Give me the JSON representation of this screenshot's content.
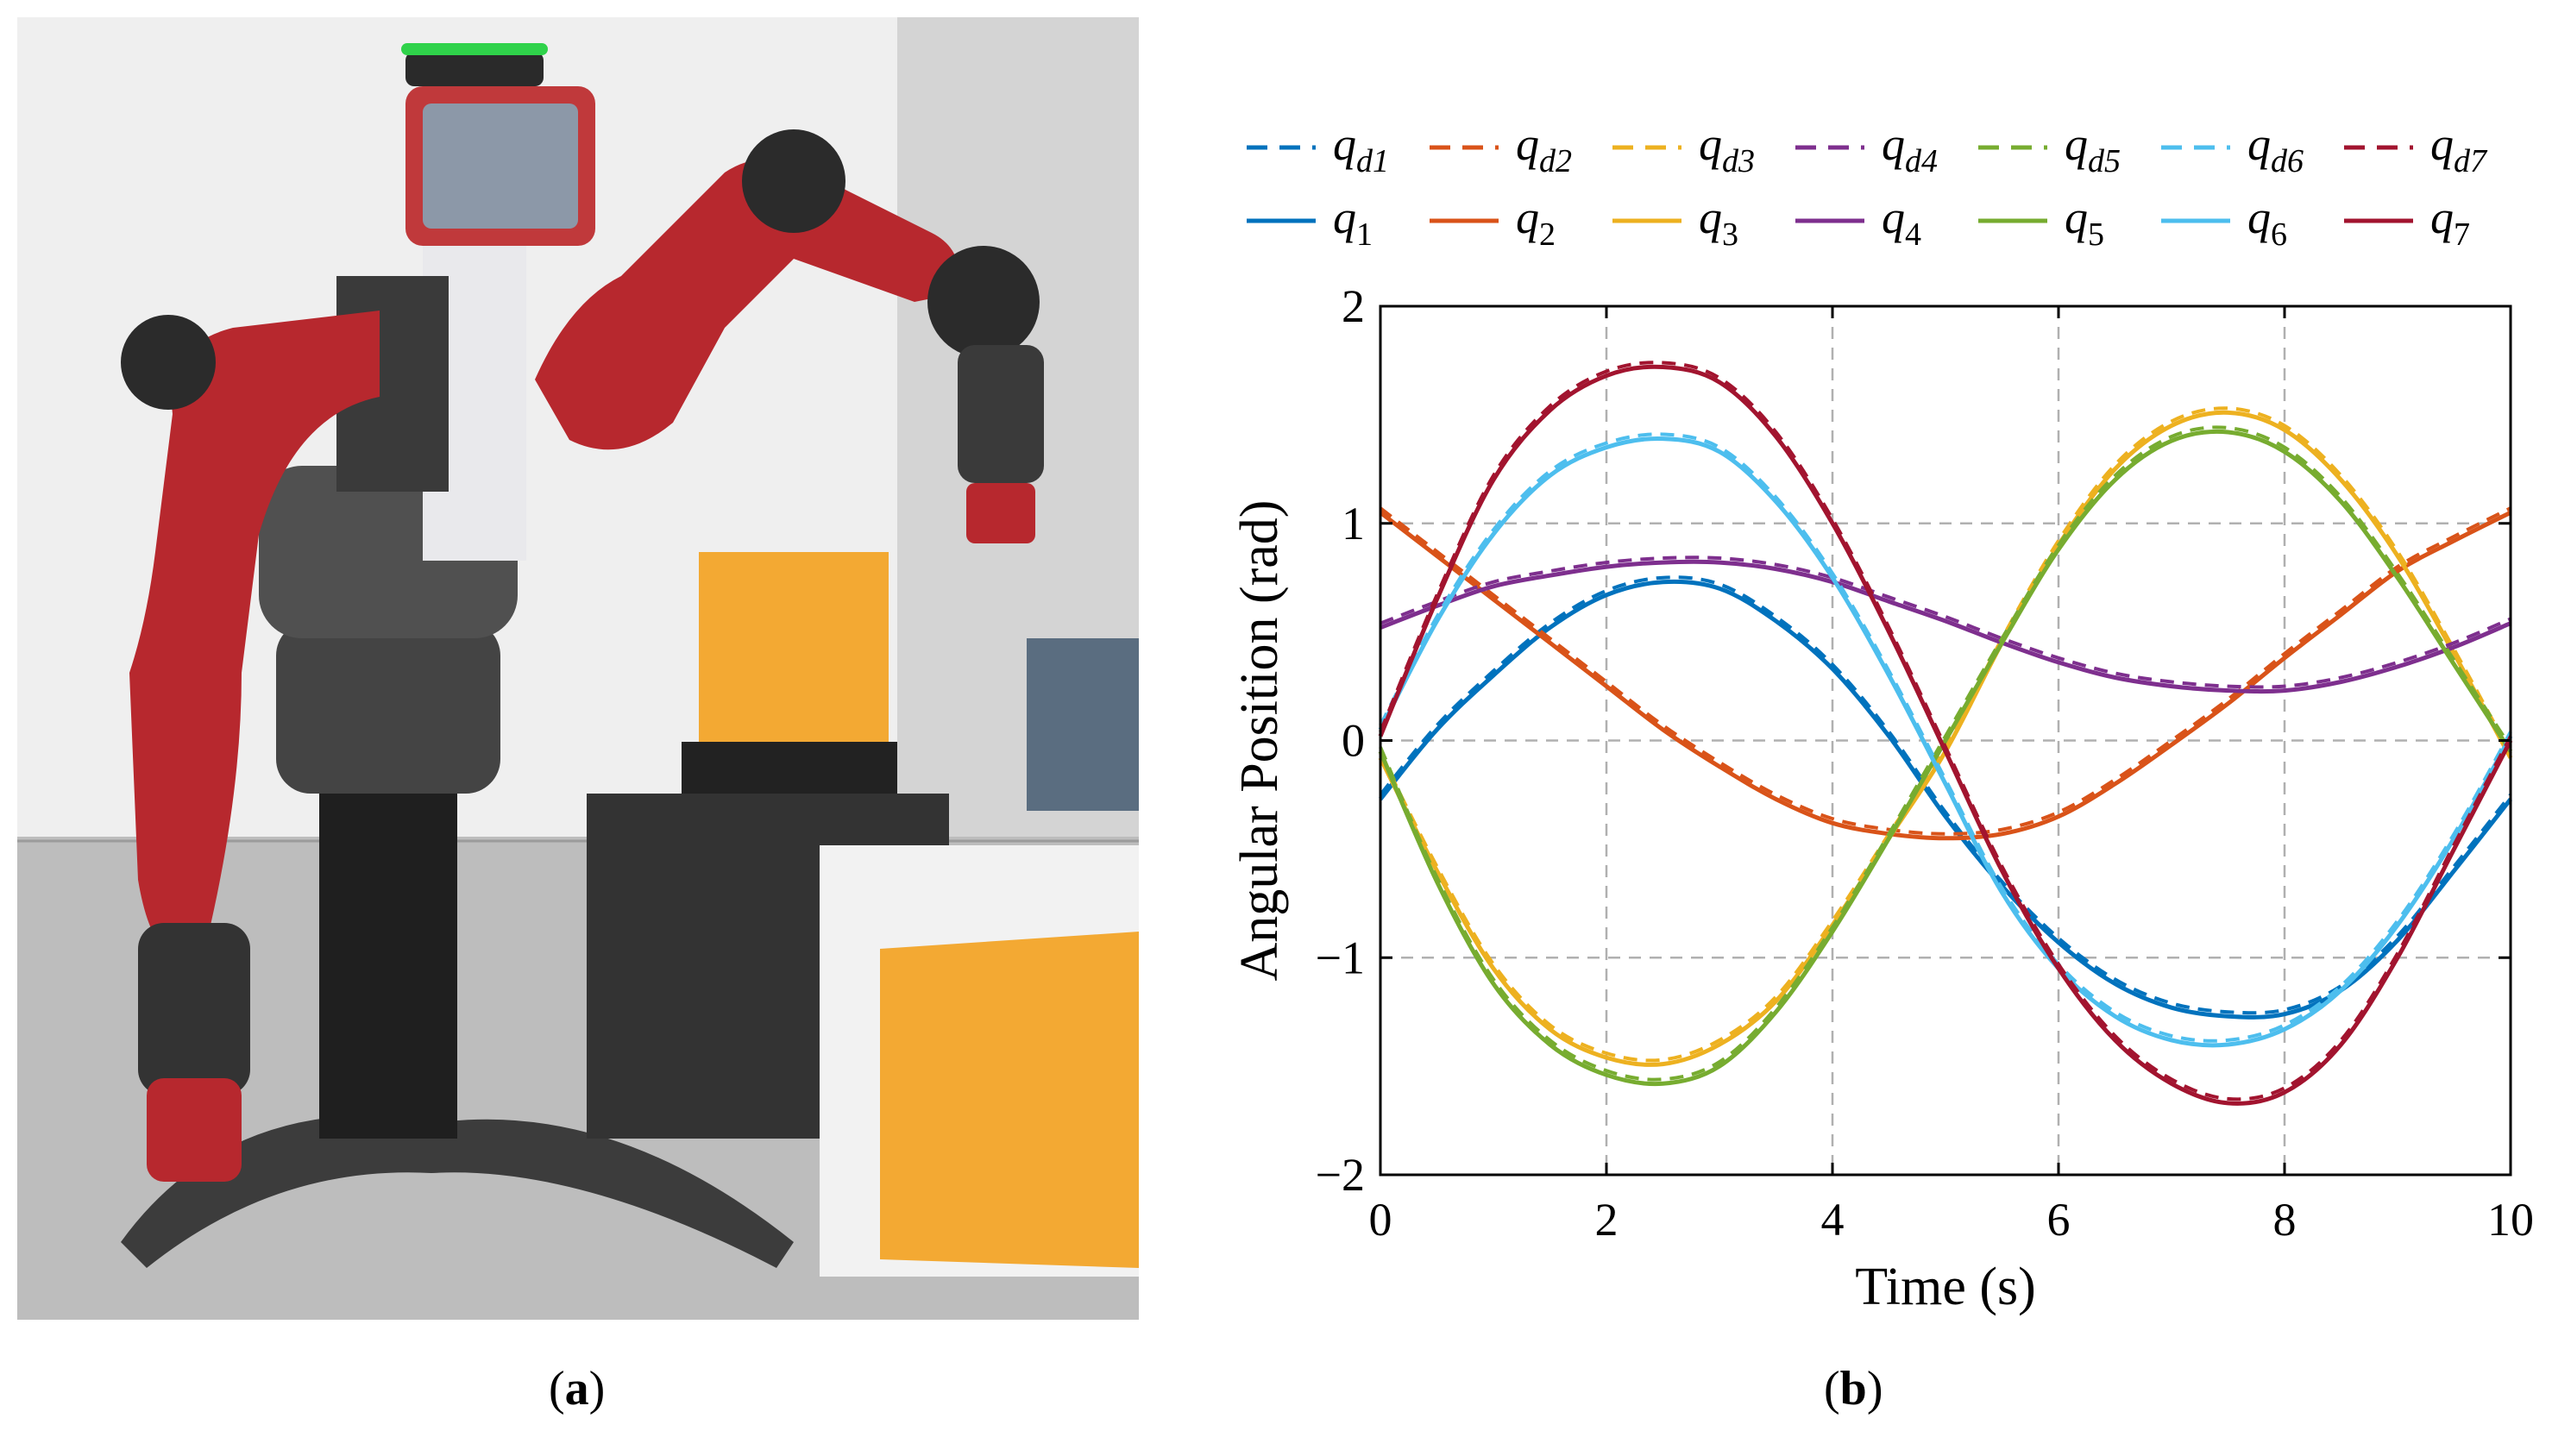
{
  "captions": {
    "a": {
      "open": "(",
      "letter": "a",
      "close": ")"
    },
    "b": {
      "open": "(",
      "letter": "b",
      "close": ")"
    }
  },
  "chart_data": {
    "type": "line",
    "xlabel": "Time (s)",
    "ylabel": "Angular Position (rad)",
    "xlim": [
      0,
      10
    ],
    "ylim": [
      -2,
      2
    ],
    "xticks": [
      0,
      2,
      4,
      6,
      8,
      10
    ],
    "yticks": [
      -2,
      -1,
      0,
      1,
      2
    ],
    "xtick_labels": [
      "0",
      "2",
      "4",
      "6",
      "8",
      "10"
    ],
    "ytick_labels": [
      "−2",
      "−1",
      "0",
      "1",
      "2"
    ],
    "grid": true,
    "legend_position": "top",
    "x": [
      0,
      0.5,
      1,
      1.5,
      2,
      2.5,
      3,
      3.5,
      4,
      4.5,
      5,
      5.5,
      6,
      6.5,
      7,
      7.5,
      8,
      8.5,
      9,
      9.5,
      10
    ],
    "series": [
      {
        "name": "q1",
        "sub": "1",
        "color": "#0072BD",
        "desired_name": "qd1",
        "desired_sub": "d1",
        "values": [
          -0.27,
          0.05,
          0.3,
          0.52,
          0.67,
          0.73,
          0.7,
          0.55,
          0.33,
          0.02,
          -0.35,
          -0.67,
          -0.93,
          -1.12,
          -1.23,
          -1.27,
          -1.26,
          -1.15,
          -0.92,
          -0.6,
          -0.27
        ]
      },
      {
        "name": "q2",
        "sub": "2",
        "color": "#D95319",
        "desired_name": "qd2",
        "desired_sub": "d2",
        "values": [
          1.05,
          0.85,
          0.65,
          0.45,
          0.25,
          0.05,
          -0.12,
          -0.27,
          -0.38,
          -0.43,
          -0.45,
          -0.43,
          -0.35,
          -0.2,
          -0.02,
          0.17,
          0.38,
          0.58,
          0.78,
          0.92,
          1.05
        ]
      },
      {
        "name": "q3",
        "sub": "3",
        "color": "#EDB120",
        "desired_name": "qd3",
        "desired_sub": "d3",
        "values": [
          -0.08,
          -0.6,
          -1.05,
          -1.33,
          -1.46,
          -1.49,
          -1.4,
          -1.2,
          -0.85,
          -0.45,
          -0.05,
          0.45,
          0.9,
          1.25,
          1.45,
          1.51,
          1.43,
          1.2,
          0.85,
          0.4,
          -0.08
        ]
      },
      {
        "name": "q4",
        "sub": "4",
        "color": "#7E2F8E",
        "desired_name": "qd4",
        "desired_sub": "d4",
        "values": [
          0.52,
          0.62,
          0.71,
          0.76,
          0.8,
          0.82,
          0.82,
          0.79,
          0.73,
          0.64,
          0.55,
          0.45,
          0.36,
          0.29,
          0.25,
          0.23,
          0.23,
          0.27,
          0.34,
          0.43,
          0.54
        ]
      },
      {
        "name": "q5",
        "sub": "5",
        "color": "#77AC30",
        "desired_name": "qd5",
        "desired_sub": "d5",
        "values": [
          -0.05,
          -0.65,
          -1.12,
          -1.4,
          -1.54,
          -1.58,
          -1.5,
          -1.25,
          -0.88,
          -0.45,
          0.0,
          0.45,
          0.88,
          1.2,
          1.38,
          1.42,
          1.33,
          1.1,
          0.75,
          0.35,
          -0.05
        ]
      },
      {
        "name": "q6",
        "sub": "6",
        "color": "#4DBEEE",
        "desired_name": "qd6",
        "desired_sub": "d6",
        "values": [
          0.05,
          0.55,
          0.95,
          1.22,
          1.35,
          1.39,
          1.33,
          1.1,
          0.75,
          0.3,
          -0.2,
          -0.7,
          -1.05,
          -1.27,
          -1.38,
          -1.4,
          -1.33,
          -1.15,
          -0.85,
          -0.45,
          0.02
        ]
      },
      {
        "name": "q7",
        "sub": "7",
        "color": "#A2142F",
        "desired_name": "qd7",
        "desired_sub": "d7",
        "values": [
          0.02,
          0.65,
          1.2,
          1.52,
          1.68,
          1.72,
          1.65,
          1.4,
          1.0,
          0.5,
          -0.05,
          -0.6,
          -1.05,
          -1.38,
          -1.58,
          -1.67,
          -1.62,
          -1.4,
          -1.0,
          -0.5,
          0.0
        ]
      }
    ]
  }
}
